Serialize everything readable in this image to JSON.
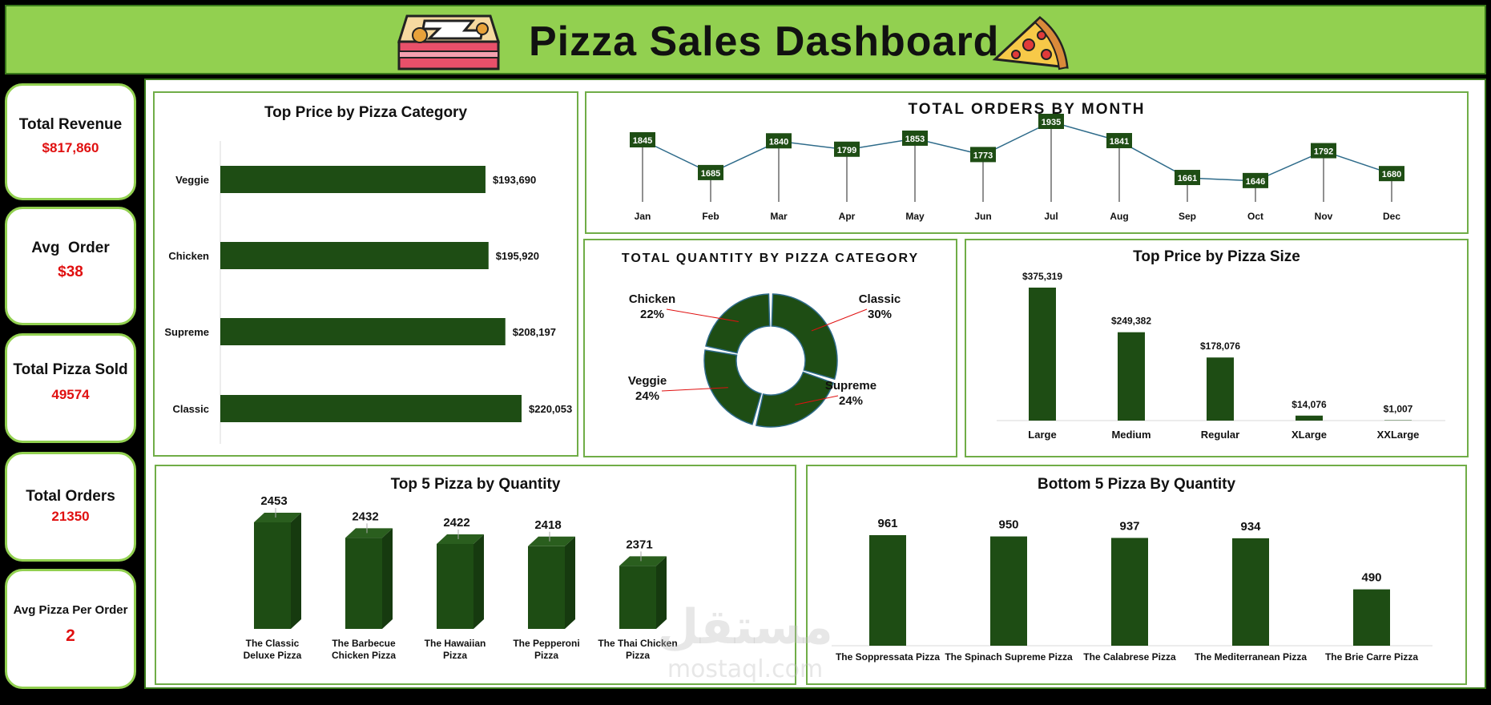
{
  "header": {
    "title": "Pizza Sales Dashboard"
  },
  "icons": {
    "left": "pizza-box-icon",
    "right": "pizza-slice-icon"
  },
  "colors": {
    "bar": "#1e4d14",
    "header": "#92d050",
    "kpi_value": "#e01010",
    "border": "#70ad47"
  },
  "kpis": [
    {
      "label": "Total Revenue",
      "value": "$817,860"
    },
    {
      "label": "Avg  Order",
      "value": "$38"
    },
    {
      "label": "Total Pizza Sold",
      "value": "49574"
    },
    {
      "label": "Total Orders",
      "value": "21350"
    },
    {
      "label": "Avg Pizza Per Order",
      "value": "2"
    }
  ],
  "chart_data": [
    {
      "type": "bar",
      "orientation": "horizontal",
      "title": "Top Price by Pizza Category",
      "categories": [
        "Veggie",
        "Chicken",
        "Supreme",
        "Classic"
      ],
      "values": [
        193690,
        195920,
        208197,
        220053
      ],
      "labels": [
        "$193,690",
        "$195,920",
        "$208,197",
        "$220,053"
      ]
    },
    {
      "type": "line",
      "title": "TOTAL ORDERS BY MONTH",
      "x": [
        "Jan",
        "Feb",
        "Mar",
        "Apr",
        "May",
        "Jun",
        "Jul",
        "Aug",
        "Sep",
        "Oct",
        "Nov",
        "Dec"
      ],
      "values": [
        1845,
        1685,
        1840,
        1799,
        1853,
        1773,
        1935,
        1841,
        1661,
        1646,
        1792,
        1680
      ],
      "labels": [
        "1845",
        "1685",
        "1840",
        "1799",
        "1853",
        "1773",
        "1935",
        "1841",
        "1661",
        "1646",
        "1792",
        "1680"
      ]
    },
    {
      "type": "pie",
      "subtype": "donut",
      "title": "TOTAL QUANTITY BY PIZZA CATEGORY",
      "categories": [
        "Classic",
        "Supreme",
        "Veggie",
        "Chicken"
      ],
      "values": [
        30,
        24,
        24,
        22
      ],
      "labels": [
        "30%",
        "24%",
        "24%",
        "22%"
      ]
    },
    {
      "type": "bar",
      "title": "Top Price by Pizza Size",
      "categories": [
        "Large",
        "Medium",
        "Regular",
        "XLarge",
        "XXLarge"
      ],
      "values": [
        375319,
        249382,
        178076,
        14076,
        1007
      ],
      "labels": [
        "$375,319",
        "$249,382",
        "$178,076",
        "$14,076",
        "$1,007"
      ]
    },
    {
      "type": "bar",
      "subtype": "3d",
      "title": "Top 5 Pizza by Quantity",
      "categories": [
        [
          "The Classic",
          "Deluxe Pizza"
        ],
        [
          "The Barbecue",
          "Chicken Pizza"
        ],
        [
          "The Hawaiian",
          "Pizza"
        ],
        [
          "The Pepperoni",
          "Pizza"
        ],
        [
          "The Thai Chicken",
          "Pizza"
        ]
      ],
      "values": [
        2453,
        2432,
        2422,
        2418,
        2371
      ],
      "labels": [
        "2453",
        "2432",
        "2422",
        "2418",
        "2371"
      ]
    },
    {
      "type": "bar",
      "title": "Bottom 5 Pizza By Quantity",
      "categories": [
        "The Soppressata Pizza",
        "The Spinach Supreme Pizza",
        "The Calabrese Pizza",
        "The Mediterranean Pizza",
        "The Brie Carre Pizza"
      ],
      "values": [
        961,
        950,
        937,
        934,
        490
      ],
      "labels": [
        "961",
        "950",
        "937",
        "934",
        "490"
      ]
    }
  ],
  "watermark": {
    "text1": "مستقل",
    "text2": "mostaql.com"
  }
}
